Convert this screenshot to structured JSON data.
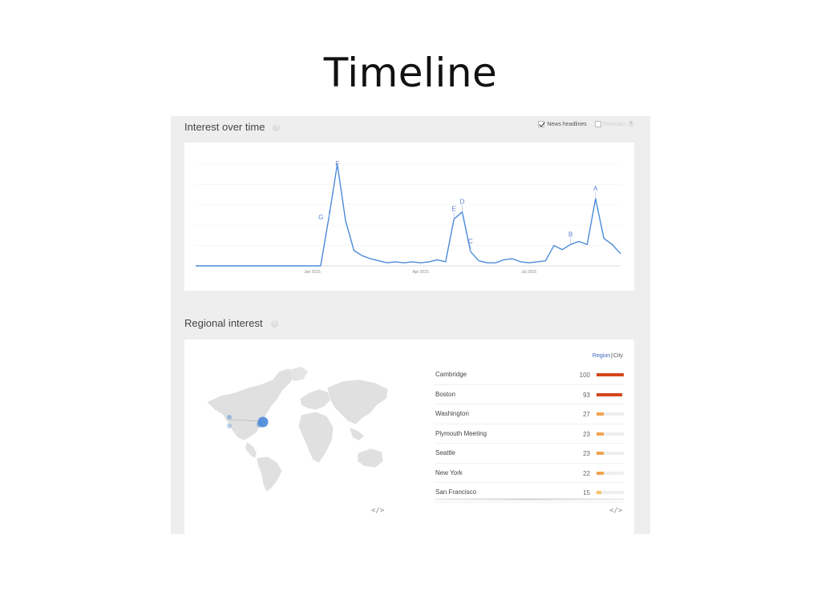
{
  "slide": {
    "title": "Timeline"
  },
  "interest_over_time": {
    "title": "Interest over time",
    "help": "?",
    "news_headlines_label": "News headlines",
    "news_headlines_checked": true,
    "forecast_label": "Forecast",
    "forecast_checked": false,
    "forecast_help": "?"
  },
  "chart_data": {
    "type": "line",
    "title": "",
    "xlabel": "",
    "ylabel": "",
    "ylim": [
      0,
      100
    ],
    "grid": true,
    "x_tick_labels": [
      "Jan 2015",
      "Apr 2015",
      "Jul 2015"
    ],
    "x_tick_positions": [
      14,
      27,
      40
    ],
    "x": [
      0,
      1,
      2,
      3,
      4,
      5,
      6,
      7,
      8,
      9,
      10,
      11,
      12,
      13,
      14,
      15,
      16,
      17,
      18,
      19,
      20,
      21,
      22,
      23,
      24,
      25,
      26,
      27,
      28,
      29,
      30,
      31,
      32,
      33,
      34,
      35,
      36,
      37,
      38,
      39,
      40,
      41,
      42,
      43,
      44,
      45,
      46,
      47,
      48,
      49,
      50,
      51
    ],
    "values": [
      0,
      0,
      0,
      0,
      0,
      0,
      0,
      0,
      0,
      0,
      0,
      0,
      0,
      0,
      0,
      0,
      48,
      100,
      44,
      15,
      10,
      7,
      5,
      3,
      4,
      3,
      4,
      3,
      4,
      6,
      4,
      46,
      53,
      14,
      5,
      3,
      3,
      6,
      7,
      4,
      3,
      4,
      5,
      20,
      16,
      21,
      24,
      21,
      66,
      27,
      21,
      12
    ],
    "annotations": [
      {
        "label": "G",
        "x": 16
      },
      {
        "label": "F",
        "x": 17
      },
      {
        "label": "E",
        "x": 31
      },
      {
        "label": "D",
        "x": 32
      },
      {
        "label": "C",
        "x": 33
      },
      {
        "label": "B",
        "x": 45
      },
      {
        "label": "A",
        "x": 48
      }
    ],
    "line_color": "#4a8ad8"
  },
  "regional_interest": {
    "title": "Regional interest",
    "help": "?",
    "toggle_region": "Region",
    "toggle_separator": "|",
    "toggle_city": "City",
    "embed_icon": "</>",
    "rows": [
      {
        "name": "Cambridge",
        "value": "100",
        "score": 100,
        "color": "#d4471c"
      },
      {
        "name": "Boston",
        "value": "93",
        "score": 93,
        "color": "#d4471c"
      },
      {
        "name": "Washington",
        "value": "27",
        "score": 27,
        "color": "#f1a451"
      },
      {
        "name": "Plymouth Meeting",
        "value": "23",
        "score": 23,
        "color": "#f1a451"
      },
      {
        "name": "Seattle",
        "value": "23",
        "score": 23,
        "color": "#f1a451"
      },
      {
        "name": "New York",
        "value": "22",
        "score": 22,
        "color": "#f1a451"
      },
      {
        "name": "San Francisco",
        "value": "15",
        "score": 15,
        "color": "#f7c46c"
      }
    ],
    "map_marker_color": "#4a8ad8"
  }
}
